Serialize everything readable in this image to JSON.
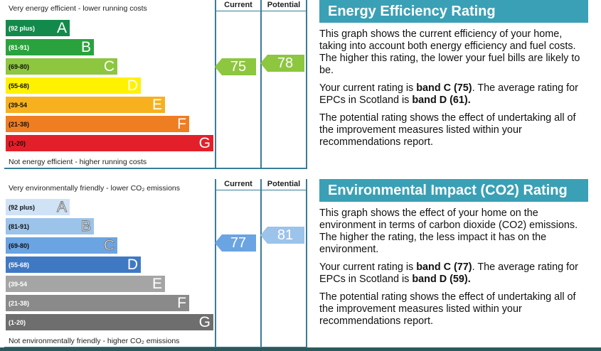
{
  "energy": {
    "top_caption": "Very energy efficient - lower running costs",
    "bottom_caption": "Not energy efficient - higher running costs",
    "col_current": "Current",
    "col_potential": "Potential",
    "bands": [
      {
        "range": "(92 plus)",
        "letter": "A",
        "color": "#138a4b"
      },
      {
        "range": "(81-91)",
        "letter": "B",
        "color": "#2aa33e"
      },
      {
        "range": "(69-80)",
        "letter": "C",
        "color": "#8dc63f"
      },
      {
        "range": "(55-68)",
        "letter": "D",
        "color": "#fff200"
      },
      {
        "range": "(39-54",
        "letter": "E",
        "color": "#f7b11f"
      },
      {
        "range": "(21-38)",
        "letter": "F",
        "color": "#ef7d22"
      },
      {
        "range": "(1-20)",
        "letter": "G",
        "color": "#e3202a"
      }
    ],
    "current": {
      "value": "75",
      "band": "C"
    },
    "potential": {
      "value": "78",
      "band": "C"
    },
    "arrow_color": "#8dc63f"
  },
  "environment": {
    "top_caption": "Very environmentally friendly - lower CO₂ emissions",
    "bottom_caption": "Not environmentally friendly - higher CO₂ emissions",
    "col_current": "Current",
    "col_potential": "Potential",
    "bands": [
      {
        "range": "(92 plus)",
        "letter": "A",
        "color": "#cfe2f6"
      },
      {
        "range": "(81-91)",
        "letter": "B",
        "color": "#9cc3ea"
      },
      {
        "range": "(69-80)",
        "letter": "C",
        "color": "#6ba4e2"
      },
      {
        "range": "(55-68)",
        "letter": "D",
        "color": "#3f79c4"
      },
      {
        "range": "(39-54",
        "letter": "E",
        "color": "#a5a5a5"
      },
      {
        "range": "(21-38)",
        "letter": "F",
        "color": "#8a8a8a"
      },
      {
        "range": "(1-20)",
        "letter": "G",
        "color": "#6e6e6e"
      }
    ],
    "current": {
      "value": "77",
      "band": "C"
    },
    "potential": {
      "value": "81",
      "band": "B"
    },
    "current_arrow_color": "#6ba4e2",
    "potential_arrow_color": "#9cc3ea"
  },
  "energy_text": {
    "title": "Energy Efficiency Rating",
    "p1": "This graph shows the current efficiency of your home, taking into account both energy efficiency and fuel costs. The higher this rating, the lower your fuel bills are likely to be.",
    "p2_pre": "Your current rating is ",
    "p2_band": "band C (75)",
    "p2_mid": ". The average rating for EPCs in Scotland is ",
    "p2_avg": "band D (61).",
    "p3": "The potential rating shows the effect of undertaking all of the improvement measures listed within your recommendations report."
  },
  "env_text": {
    "title": "Environmental Impact (CO2) Rating",
    "p1": "This graph shows the effect of your home on the environment in terms of carbon dioxide (CO2) emissions. The higher the rating, the less impact it has on the environment.",
    "p2_pre": "Your current rating is ",
    "p2_band": "band C (77)",
    "p2_mid": ". The average rating for EPCs in Scotland is ",
    "p2_avg": "band D (59).",
    "p3": "The potential rating shows the effect of undertaking all of the improvement measures listed within your recommendations report."
  }
}
